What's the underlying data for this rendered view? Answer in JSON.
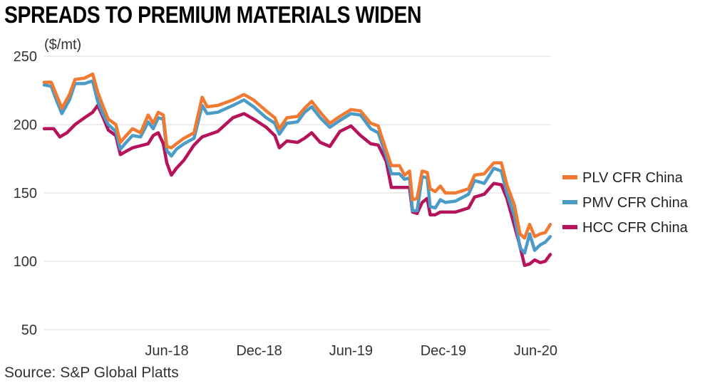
{
  "chart_data": {
    "type": "line",
    "title": "SPREADS TO PREMIUM MATERIALS WIDEN",
    "ylabel": "($/mt)",
    "source": "Source: S&P Global Platts",
    "ylim": [
      50,
      250
    ],
    "yticks": [
      50,
      100,
      150,
      200,
      250
    ],
    "xlim": [
      "2017-10-01",
      "2020-06-30"
    ],
    "xticks": [
      {
        "date": "2018-06-01",
        "label": "Jun-18"
      },
      {
        "date": "2018-12-01",
        "label": "Dec-18"
      },
      {
        "date": "2019-06-01",
        "label": "Jun-19"
      },
      {
        "date": "2019-12-01",
        "label": "Dec-19"
      },
      {
        "date": "2020-06-01",
        "label": "Jun-20"
      }
    ],
    "grid": "horizontal",
    "legend_position": "right",
    "series": [
      {
        "name": "PLV CFR China",
        "color": "#F07A32",
        "points": [
          [
            "2017-10-01",
            231
          ],
          [
            "2017-10-15",
            231
          ],
          [
            "2017-10-25",
            222
          ],
          [
            "2017-11-05",
            212
          ],
          [
            "2017-11-20",
            222
          ],
          [
            "2017-12-01",
            233
          ],
          [
            "2017-12-20",
            234
          ],
          [
            "2018-01-05",
            237
          ],
          [
            "2018-01-15",
            224
          ],
          [
            "2018-01-25",
            214
          ],
          [
            "2018-02-05",
            204
          ],
          [
            "2018-02-20",
            200
          ],
          [
            "2018-03-01",
            187
          ],
          [
            "2018-03-10",
            191
          ],
          [
            "2018-03-25",
            197
          ],
          [
            "2018-04-10",
            194
          ],
          [
            "2018-04-25",
            207
          ],
          [
            "2018-05-05",
            201
          ],
          [
            "2018-05-15",
            209
          ],
          [
            "2018-05-25",
            207
          ],
          [
            "2018-06-01",
            184
          ],
          [
            "2018-06-10",
            183
          ],
          [
            "2018-06-20",
            186
          ],
          [
            "2018-07-05",
            190
          ],
          [
            "2018-07-25",
            194
          ],
          [
            "2018-08-10",
            220
          ],
          [
            "2018-08-20",
            213
          ],
          [
            "2018-09-10",
            214
          ],
          [
            "2018-10-10",
            218
          ],
          [
            "2018-11-01",
            222
          ],
          [
            "2018-11-20",
            218
          ],
          [
            "2018-12-15",
            210
          ],
          [
            "2019-01-01",
            205
          ],
          [
            "2019-01-10",
            197
          ],
          [
            "2019-01-25",
            205
          ],
          [
            "2019-02-15",
            206
          ],
          [
            "2019-03-01",
            212
          ],
          [
            "2019-03-15",
            217
          ],
          [
            "2019-04-01",
            209
          ],
          [
            "2019-04-20",
            201
          ],
          [
            "2019-05-10",
            206
          ],
          [
            "2019-06-01",
            211
          ],
          [
            "2019-06-20",
            210
          ],
          [
            "2019-07-10",
            201
          ],
          [
            "2019-07-25",
            199
          ],
          [
            "2019-08-10",
            181
          ],
          [
            "2019-08-20",
            170
          ],
          [
            "2019-09-05",
            170
          ],
          [
            "2019-09-15",
            163
          ],
          [
            "2019-09-25",
            166
          ],
          [
            "2019-10-01",
            145
          ],
          [
            "2019-10-10",
            146
          ],
          [
            "2019-10-20",
            166
          ],
          [
            "2019-10-30",
            165
          ],
          [
            "2019-11-05",
            153
          ],
          [
            "2019-11-15",
            151
          ],
          [
            "2019-11-25",
            155
          ],
          [
            "2019-12-05",
            150
          ],
          [
            "2019-12-25",
            150
          ],
          [
            "2020-01-20",
            153
          ],
          [
            "2020-02-01",
            163
          ],
          [
            "2020-02-20",
            164
          ],
          [
            "2020-03-10",
            172
          ],
          [
            "2020-03-25",
            172
          ],
          [
            "2020-04-05",
            156
          ],
          [
            "2020-04-20",
            141
          ],
          [
            "2020-05-01",
            120
          ],
          [
            "2020-05-10",
            117
          ],
          [
            "2020-05-20",
            127
          ],
          [
            "2020-05-30",
            118
          ],
          [
            "2020-06-10",
            120
          ],
          [
            "2020-06-20",
            121
          ],
          [
            "2020-06-30",
            127
          ]
        ]
      },
      {
        "name": "PMV CFR China",
        "color": "#4A9BC7",
        "points": [
          [
            "2017-10-01",
            229
          ],
          [
            "2017-10-15",
            228
          ],
          [
            "2017-10-25",
            218
          ],
          [
            "2017-11-05",
            208
          ],
          [
            "2017-11-20",
            218
          ],
          [
            "2017-12-01",
            230
          ],
          [
            "2017-12-20",
            230
          ],
          [
            "2018-01-05",
            232
          ],
          [
            "2018-01-15",
            217
          ],
          [
            "2018-01-25",
            208
          ],
          [
            "2018-02-05",
            200
          ],
          [
            "2018-02-20",
            195
          ],
          [
            "2018-03-01",
            182
          ],
          [
            "2018-03-10",
            186
          ],
          [
            "2018-03-25",
            192
          ],
          [
            "2018-04-10",
            191
          ],
          [
            "2018-04-25",
            202
          ],
          [
            "2018-05-05",
            197
          ],
          [
            "2018-05-15",
            205
          ],
          [
            "2018-05-25",
            204
          ],
          [
            "2018-06-01",
            181
          ],
          [
            "2018-06-10",
            177
          ],
          [
            "2018-06-20",
            182
          ],
          [
            "2018-07-05",
            186
          ],
          [
            "2018-07-25",
            190
          ],
          [
            "2018-08-10",
            214
          ],
          [
            "2018-08-20",
            208
          ],
          [
            "2018-09-10",
            209
          ],
          [
            "2018-10-10",
            214
          ],
          [
            "2018-11-01",
            218
          ],
          [
            "2018-11-20",
            213
          ],
          [
            "2018-12-15",
            205
          ],
          [
            "2019-01-01",
            201
          ],
          [
            "2019-01-10",
            193
          ],
          [
            "2019-01-25",
            201
          ],
          [
            "2019-02-15",
            202
          ],
          [
            "2019-03-01",
            209
          ],
          [
            "2019-03-15",
            213
          ],
          [
            "2019-04-01",
            205
          ],
          [
            "2019-04-20",
            198
          ],
          [
            "2019-05-10",
            203
          ],
          [
            "2019-06-01",
            208
          ],
          [
            "2019-06-20",
            207
          ],
          [
            "2019-07-10",
            197
          ],
          [
            "2019-07-25",
            194
          ],
          [
            "2019-08-10",
            177
          ],
          [
            "2019-08-20",
            164
          ],
          [
            "2019-09-05",
            164
          ],
          [
            "2019-09-15",
            160
          ],
          [
            "2019-09-25",
            161
          ],
          [
            "2019-10-01",
            137
          ],
          [
            "2019-10-10",
            137
          ],
          [
            "2019-10-20",
            162
          ],
          [
            "2019-10-30",
            161
          ],
          [
            "2019-11-05",
            140
          ],
          [
            "2019-11-15",
            139
          ],
          [
            "2019-11-25",
            145
          ],
          [
            "2019-12-05",
            143
          ],
          [
            "2019-12-25",
            144
          ],
          [
            "2020-01-20",
            149
          ],
          [
            "2020-02-01",
            159
          ],
          [
            "2020-02-20",
            157
          ],
          [
            "2020-03-10",
            168
          ],
          [
            "2020-03-25",
            166
          ],
          [
            "2020-04-05",
            150
          ],
          [
            "2020-04-20",
            133
          ],
          [
            "2020-05-01",
            110
          ],
          [
            "2020-05-10",
            106
          ],
          [
            "2020-05-20",
            120
          ],
          [
            "2020-05-30",
            108
          ],
          [
            "2020-06-10",
            112
          ],
          [
            "2020-06-20",
            114
          ],
          [
            "2020-06-30",
            118
          ]
        ]
      },
      {
        "name": "HCC CFR China",
        "color": "#B5135A",
        "points": [
          [
            "2017-10-01",
            197
          ],
          [
            "2017-10-20",
            197
          ],
          [
            "2017-11-01",
            191
          ],
          [
            "2017-11-15",
            194
          ],
          [
            "2017-12-01",
            200
          ],
          [
            "2017-12-20",
            205
          ],
          [
            "2018-01-05",
            209
          ],
          [
            "2018-01-15",
            214
          ],
          [
            "2018-01-25",
            206
          ],
          [
            "2018-02-05",
            196
          ],
          [
            "2018-02-20",
            192
          ],
          [
            "2018-03-01",
            178
          ],
          [
            "2018-03-10",
            180
          ],
          [
            "2018-03-25",
            183
          ],
          [
            "2018-04-25",
            186
          ],
          [
            "2018-05-05",
            192
          ],
          [
            "2018-05-15",
            194
          ],
          [
            "2018-05-25",
            186
          ],
          [
            "2018-06-01",
            172
          ],
          [
            "2018-06-10",
            163
          ],
          [
            "2018-06-20",
            168
          ],
          [
            "2018-07-05",
            174
          ],
          [
            "2018-07-25",
            185
          ],
          [
            "2018-08-10",
            191
          ],
          [
            "2018-09-10",
            195
          ],
          [
            "2018-10-10",
            205
          ],
          [
            "2018-11-01",
            208
          ],
          [
            "2018-11-20",
            204
          ],
          [
            "2018-12-15",
            198
          ],
          [
            "2019-01-01",
            192
          ],
          [
            "2019-01-10",
            183
          ],
          [
            "2019-01-25",
            188
          ],
          [
            "2019-02-15",
            187
          ],
          [
            "2019-03-01",
            190
          ],
          [
            "2019-03-15",
            194
          ],
          [
            "2019-04-01",
            187
          ],
          [
            "2019-04-20",
            184
          ],
          [
            "2019-05-10",
            195
          ],
          [
            "2019-06-01",
            199
          ],
          [
            "2019-06-20",
            192
          ],
          [
            "2019-07-10",
            186
          ],
          [
            "2019-07-25",
            185
          ],
          [
            "2019-08-10",
            173
          ],
          [
            "2019-08-20",
            154
          ],
          [
            "2019-09-05",
            154
          ],
          [
            "2019-09-25",
            154
          ],
          [
            "2019-10-01",
            136
          ],
          [
            "2019-10-10",
            135
          ],
          [
            "2019-10-20",
            143
          ],
          [
            "2019-10-30",
            146
          ],
          [
            "2019-11-05",
            134
          ],
          [
            "2019-11-15",
            134
          ],
          [
            "2019-11-25",
            136
          ],
          [
            "2019-12-05",
            136
          ],
          [
            "2019-12-25",
            136
          ],
          [
            "2020-01-20",
            139
          ],
          [
            "2020-02-01",
            147
          ],
          [
            "2020-02-20",
            149
          ],
          [
            "2020-03-10",
            157
          ],
          [
            "2020-03-25",
            156
          ],
          [
            "2020-04-05",
            146
          ],
          [
            "2020-04-20",
            126
          ],
          [
            "2020-05-01",
            111
          ],
          [
            "2020-05-10",
            97
          ],
          [
            "2020-05-20",
            98
          ],
          [
            "2020-05-30",
            101
          ],
          [
            "2020-06-10",
            99
          ],
          [
            "2020-06-20",
            100
          ],
          [
            "2020-06-30",
            105
          ]
        ]
      }
    ]
  }
}
